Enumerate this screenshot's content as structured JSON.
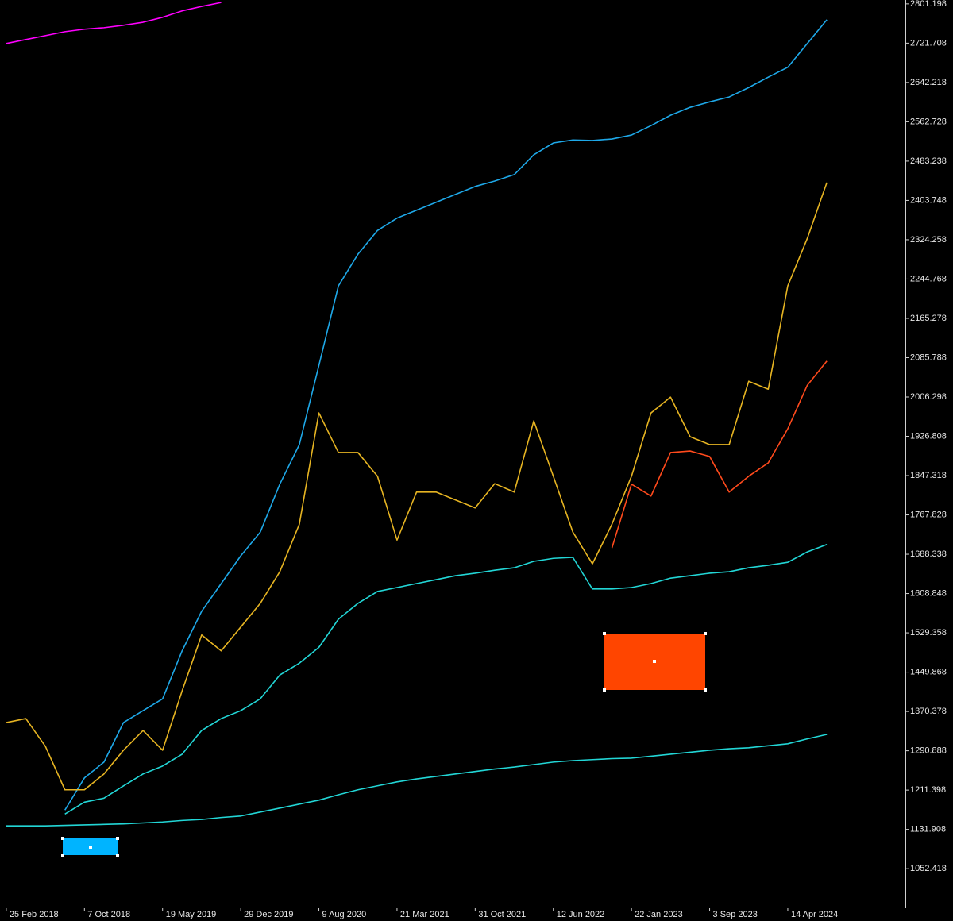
{
  "chart_data": {
    "type": "line",
    "x": [
      "2018-02-25",
      "2018-04-22",
      "2018-06-17",
      "2018-08-12",
      "2018-10-07",
      "2018-12-02",
      "2019-01-27",
      "2019-03-24",
      "2019-05-19",
      "2019-07-14",
      "2019-09-08",
      "2019-11-03",
      "2019-12-29",
      "2020-02-23",
      "2020-04-19",
      "2020-06-14",
      "2020-08-09",
      "2020-10-04",
      "2020-11-29",
      "2021-01-24",
      "2021-03-21",
      "2021-05-16",
      "2021-07-11",
      "2021-09-05",
      "2021-10-31",
      "2021-12-26",
      "2022-02-20",
      "2022-04-17",
      "2022-06-12",
      "2022-08-07",
      "2022-10-02",
      "2022-11-27",
      "2023-01-22",
      "2023-03-19",
      "2023-05-14",
      "2023-07-09",
      "2023-09-03",
      "2023-10-29",
      "2023-12-24",
      "2024-02-18",
      "2024-04-14",
      "2024-06-09",
      "2024-08-04"
    ],
    "series": [
      {
        "color": "#ff00ff",
        "values": [
          2721,
          2729,
          2737,
          2745,
          2750,
          2753,
          2758,
          2764,
          2774,
          2787,
          2796,
          2804,
          null,
          null,
          null,
          null,
          null,
          null,
          null,
          null,
          null,
          null,
          null,
          null,
          null,
          null,
          null,
          null,
          null,
          null,
          null,
          null,
          null,
          null,
          null,
          null,
          null,
          null,
          null,
          null,
          null,
          null,
          null
        ]
      },
      {
        "color": "#1ea8e8",
        "values": [
          null,
          null,
          null,
          1171,
          1236,
          1268,
          1348,
          1372,
          1396,
          1493,
          1573,
          1629,
          1685,
          1733,
          1830,
          1910,
          2070,
          2231,
          2295,
          2343,
          2368,
          2384,
          2400,
          2416,
          2432,
          2443,
          2456,
          2496,
          2520,
          2526,
          2525,
          2528,
          2536,
          2555,
          2576,
          2592,
          2603,
          2613,
          2632,
          2653,
          2673,
          2721,
          2769
        ]
      },
      {
        "color": "#e6b422",
        "values": [
          1348,
          1356,
          1300,
          1212,
          1212,
          1244,
          1292,
          1332,
          1292,
          1412,
          1525,
          1493,
          1541,
          1589,
          1653,
          1749,
          1974,
          1894,
          1894,
          1846,
          1717,
          1814,
          1814,
          1798,
          1782,
          1831,
          1814,
          1958,
          1846,
          1733,
          1669,
          1749,
          1846,
          1974,
          2006,
          1926,
          1910,
          1910,
          2038,
          2022,
          2231,
          2327,
          2440
        ]
      },
      {
        "color": "#ff4a1c",
        "values": [
          null,
          null,
          null,
          null,
          null,
          null,
          null,
          null,
          null,
          null,
          null,
          null,
          null,
          null,
          null,
          null,
          null,
          null,
          null,
          null,
          null,
          null,
          null,
          null,
          null,
          null,
          null,
          null,
          null,
          null,
          null,
          1701,
          1830,
          1806,
          1894,
          1897,
          1886,
          1814,
          1846,
          1873,
          1942,
          2030,
          2079
        ]
      },
      {
        "color": "#22d6d6",
        "values": [
          null,
          null,
          null,
          1163,
          1187,
          1195,
          1220,
          1244,
          1260,
          1284,
          1332,
          1356,
          1372,
          1396,
          1444,
          1468,
          1500,
          1557,
          1589,
          1613,
          1621,
          1629,
          1637,
          1645,
          1650,
          1656,
          1661,
          1674,
          1680,
          1682,
          1618,
          1618,
          1621,
          1629,
          1640,
          1645,
          1650,
          1653,
          1661,
          1666,
          1672,
          1693,
          1708
        ]
      },
      {
        "color": "#22d6d6",
        "values": [
          1139,
          1139,
          1139,
          1140,
          1141,
          1142,
          1143,
          1145,
          1147,
          1150,
          1152,
          1156,
          1159,
          1167,
          1175,
          1183,
          1191,
          1202,
          1212,
          1220,
          1228,
          1234,
          1239,
          1244,
          1249,
          1254,
          1258,
          1263,
          1268,
          1271,
          1273,
          1275,
          1276,
          1280,
          1284,
          1288,
          1292,
          1295,
          1297,
          1301,
          1305,
          1315,
          1324
        ]
      }
    ],
    "xlim": [
      "2018-02-07",
      "2025-03-17"
    ],
    "xticks": [
      {
        "value": "2018-02-25",
        "label": "25 Feb 2018"
      },
      {
        "value": "2018-10-07",
        "label": "7 Oct 2018"
      },
      {
        "value": "2019-05-19",
        "label": "19 May 2019"
      },
      {
        "value": "2019-12-29",
        "label": "29 Dec 2019"
      },
      {
        "value": "2020-08-09",
        "label": "9 Aug 2020"
      },
      {
        "value": "2021-03-21",
        "label": "21 Mar 2021"
      },
      {
        "value": "2021-10-31",
        "label": "31 Oct 2021"
      },
      {
        "value": "2022-06-12",
        "label": "12 Jun 2022"
      },
      {
        "value": "2023-01-22",
        "label": "22 Jan 2023"
      },
      {
        "value": "2023-09-03",
        "label": "3 Sep 2023"
      },
      {
        "value": "2024-04-14",
        "label": "14 Apr 2024"
      }
    ],
    "ylim": [
      974,
      2809
    ],
    "yticks": [
      2801.198,
      2721.708,
      2642.218,
      2562.728,
      2483.238,
      2403.748,
      2324.258,
      2244.768,
      2165.278,
      2085.788,
      2006.298,
      1926.808,
      1847.318,
      1767.828,
      1688.338,
      1608.848,
      1529.358,
      1449.868,
      1370.378,
      1290.888,
      1211.398,
      1131.908,
      1052.418
    ]
  }
}
